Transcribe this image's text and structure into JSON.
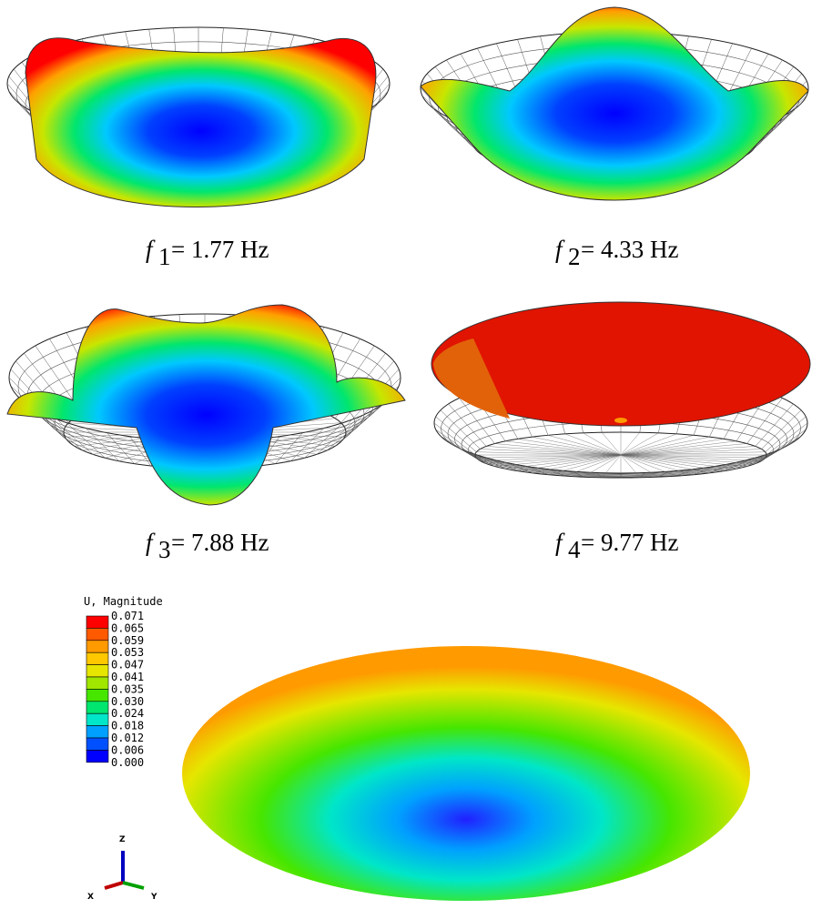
{
  "modes": [
    {
      "symbol": "f",
      "subscript": "1",
      "equation": "= 1.77 Hz"
    },
    {
      "symbol": "f",
      "subscript": "2",
      "equation": "= 4.33 Hz"
    },
    {
      "symbol": "f",
      "subscript": "3",
      "equation": "= 7.88 Hz"
    },
    {
      "symbol": "f",
      "subscript": "4",
      "equation": "= 9.77 Hz"
    }
  ],
  "legend": {
    "title": "U, Magnitude",
    "values": [
      "0.071",
      "0.065",
      "0.059",
      "0.053",
      "0.047",
      "0.041",
      "0.035",
      "0.030",
      "0.024",
      "0.018",
      "0.012",
      "0.006",
      "0.000"
    ],
    "colors": [
      "#ff0000",
      "#ff5a00",
      "#ff9a00",
      "#ffc800",
      "#e6e600",
      "#a0e600",
      "#46e600",
      "#00e66e",
      "#00e6c8",
      "#00a0ff",
      "#0050ff",
      "#0000ff"
    ]
  },
  "axes": {
    "z": "Z",
    "x": "X",
    "y": "Y"
  }
}
